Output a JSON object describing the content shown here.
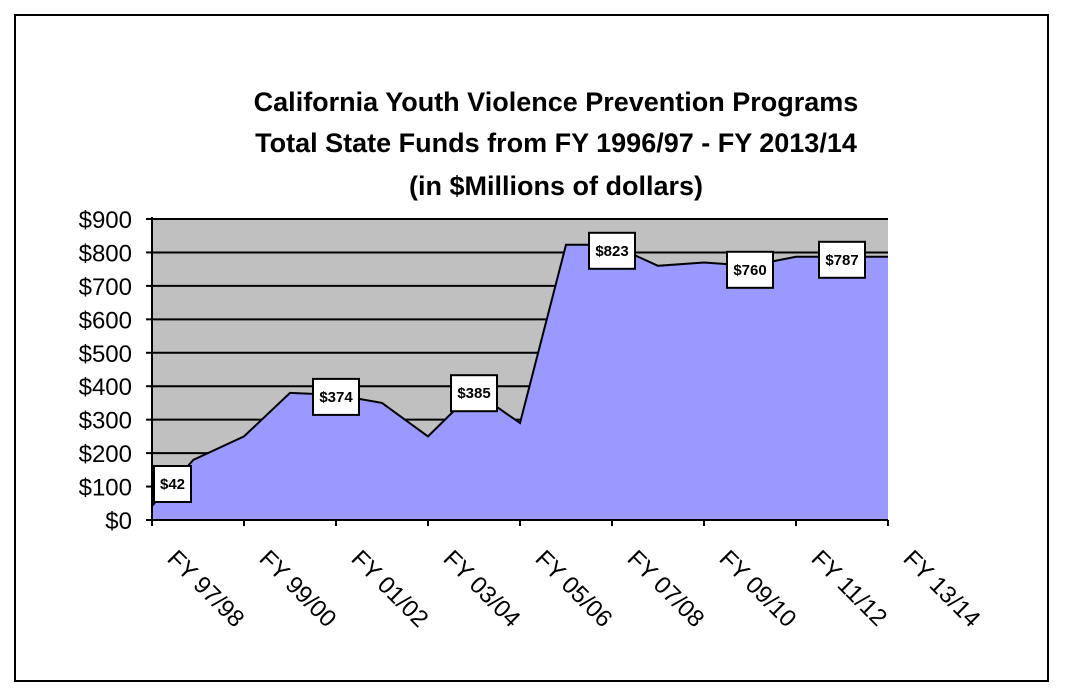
{
  "chart_data": {
    "type": "area",
    "title_lines": [
      "California Youth Violence Prevention Programs",
      "Total State Funds from  FY 1996/97 - FY 2013/14",
      "(in $Millions of dollars)"
    ],
    "xlabel": "",
    "ylabel": "",
    "ylim": [
      0,
      900
    ],
    "y_ticks": [
      0,
      100,
      200,
      300,
      400,
      500,
      600,
      700,
      800,
      900
    ],
    "y_tick_labels": [
      "$0",
      "$100",
      "$200",
      "$300",
      "$400",
      "$500",
      "$600",
      "$700",
      "$800",
      "$900"
    ],
    "x_tick_labels": [
      "FY 97/98",
      "FY 99/00",
      "FY 01/02",
      "FY 03/04",
      "FY 05/06",
      "FY 07/08",
      "FY 09/10",
      "FY 11/12",
      "FY 13/14"
    ],
    "x": [
      0,
      0.9,
      2,
      3,
      4,
      5,
      6,
      7,
      8,
      9,
      10,
      11,
      12,
      13,
      14,
      15,
      16
    ],
    "values": [
      42,
      180,
      250,
      380,
      374,
      350,
      250,
      385,
      290,
      823,
      823,
      760,
      770,
      760,
      787,
      787,
      787
    ],
    "data_labels": [
      {
        "index": 0,
        "text": "$42"
      },
      {
        "index": 4,
        "text": "$374"
      },
      {
        "index": 7,
        "text": "$385"
      },
      {
        "index": 10,
        "text": "$823"
      },
      {
        "index": 13,
        "text": "$760"
      },
      {
        "index": 15,
        "text": "$787"
      }
    ],
    "grid": true,
    "legend": "none",
    "colors": {
      "area_fill": "#9999ff",
      "plot_background": "#c0c0c0",
      "gridline": "#000000",
      "line": "#000000",
      "label_box": "#ffffff"
    }
  }
}
